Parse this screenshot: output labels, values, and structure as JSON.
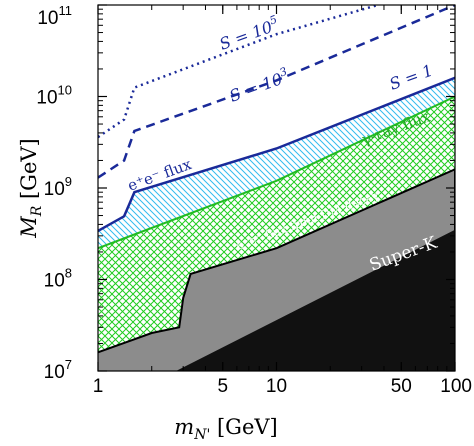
{
  "chart_data": {
    "type": "area",
    "xlabel": "m_N' [GeV]",
    "ylabel": "M_R [GeV]",
    "x_scale": "log",
    "y_scale": "log",
    "xlim": [
      1,
      100
    ],
    "ylim": [
      10000000,
      100000000000
    ],
    "x_ticks": [
      {
        "value": 1,
        "label": "1"
      },
      {
        "value": 5,
        "label": "5"
      },
      {
        "value": 10,
        "label": "10"
      },
      {
        "value": 50,
        "label": "50"
      },
      {
        "value": 100,
        "label": "100"
      }
    ],
    "y_ticks": [
      {
        "value": 10000000,
        "base": "10",
        "exp": "7"
      },
      {
        "value": 100000000,
        "base": "10",
        "exp": "8"
      },
      {
        "value": 1000000000,
        "base": "10",
        "exp": "9"
      },
      {
        "value": 10000000000,
        "base": "10",
        "exp": "10"
      },
      {
        "value": 100000000000,
        "base": "10",
        "exp": "11"
      }
    ],
    "grid": false,
    "colors": {
      "super_k": "#111111",
      "dm_decay": "#8c8c8c",
      "gamma_hatch": "#22cc22",
      "positron_hatch": "#33bbee",
      "s_lines": "#1a2a99"
    },
    "regions": [
      {
        "name": "Super-K",
        "label": "Super-K",
        "boundary": [
          {
            "x": 2.6,
            "y": 10000000
          },
          {
            "x": 100,
            "y": 350000000
          }
        ]
      },
      {
        "name": "e+e- flux from DM decay",
        "label": "e⁺e⁻ flux from DM decay",
        "boundary": [
          {
            "x": 1,
            "y": 16000000
          },
          {
            "x": 2.0,
            "y": 26000000
          },
          {
            "x": 2.85,
            "y": 30000000
          },
          {
            "x": 3.0,
            "y": 63000000
          },
          {
            "x": 3.3,
            "y": 115000000
          },
          {
            "x": 10,
            "y": 220000000
          },
          {
            "x": 100,
            "y": 1600000000
          }
        ]
      },
      {
        "name": "gamma-ray flux",
        "label": "γ-ray flux",
        "boundary": [
          {
            "x": 1,
            "y": 220000000
          },
          {
            "x": 10,
            "y": 1200000000
          },
          {
            "x": 100,
            "y": 10000000000
          }
        ]
      },
      {
        "name": "e+e- flux",
        "label": "e⁺e⁻ flux",
        "boundary": [
          {
            "x": 1,
            "y": 340000000
          },
          {
            "x": 1.4,
            "y": 490000000
          },
          {
            "x": 1.6,
            "y": 900000000
          },
          {
            "x": 10,
            "y": 2700000000
          },
          {
            "x": 100,
            "y": 16000000000
          }
        ]
      }
    ],
    "series": [
      {
        "name": "S = 1",
        "label": "S = 1",
        "style": "solid",
        "points": [
          {
            "x": 1,
            "y": 340000000
          },
          {
            "x": 1.4,
            "y": 490000000
          },
          {
            "x": 1.6,
            "y": 900000000
          },
          {
            "x": 10,
            "y": 2700000000
          },
          {
            "x": 100,
            "y": 16000000000
          }
        ]
      },
      {
        "name": "S = 10^3",
        "label_base": "S = 10",
        "label_exp": "3",
        "style": "dashed",
        "points": [
          {
            "x": 1,
            "y": 1300000000
          },
          {
            "x": 1.4,
            "y": 2000000000
          },
          {
            "x": 1.6,
            "y": 4200000000
          },
          {
            "x": 10,
            "y": 15000000000
          },
          {
            "x": 100,
            "y": 100000000000
          }
        ]
      },
      {
        "name": "S = 10^5",
        "label_base": "S = 10",
        "label_exp": "5",
        "style": "dotted",
        "points": [
          {
            "x": 1,
            "y": 3600000000
          },
          {
            "x": 1.4,
            "y": 5600000000
          },
          {
            "x": 1.6,
            "y": 12500000000
          },
          {
            "x": 10,
            "y": 48000000000
          },
          {
            "x": 37,
            "y": 100000000000
          }
        ]
      }
    ]
  }
}
